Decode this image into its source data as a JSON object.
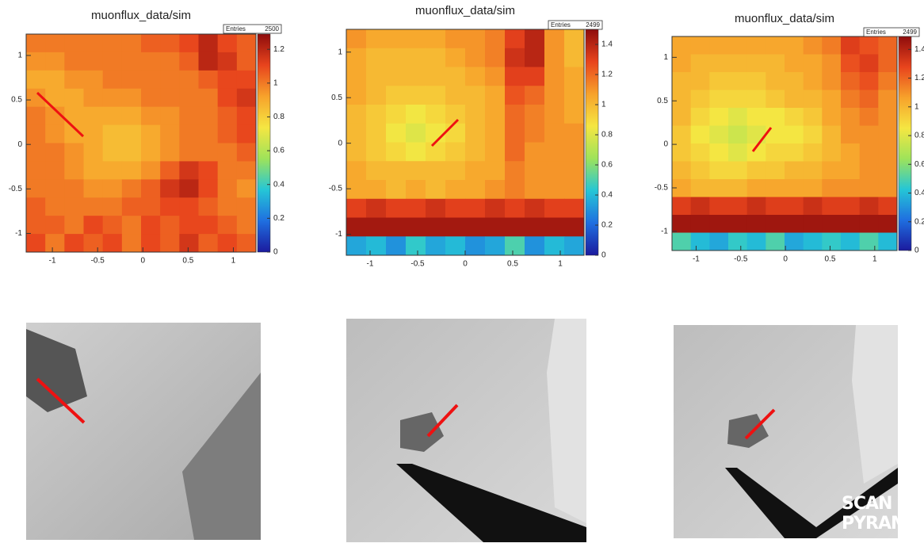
{
  "chart_data": [
    {
      "type": "heatmap",
      "title": "muonflux_data/sim",
      "stats_box": [
        {
          "name": "Entries",
          "value": 2500
        }
      ],
      "xlim": [
        -1.29,
        1.25
      ],
      "ylim": [
        -1.21,
        1.24
      ],
      "xticks": [
        -1,
        -0.5,
        0,
        0.5,
        1
      ],
      "yticks": [
        -1,
        -0.5,
        0,
        0.5,
        1
      ],
      "zlim": [
        0,
        1.29
      ],
      "zticks": [
        0,
        0.2,
        0.4,
        0.6,
        0.8,
        1,
        1.2
      ],
      "colormap": [
        "#1b1a9e",
        "#1f6fe0",
        "#25c6d6",
        "#9ee35a",
        "#f5e642",
        "#f7a22b",
        "#e8441d",
        "#8e0c0c"
      ],
      "values": [
        [
          1.0,
          1.0,
          1.0,
          1.0,
          1.0,
          1.0,
          1.05,
          1.05,
          1.1,
          1.2,
          1.1,
          1.05
        ],
        [
          0.95,
          0.95,
          1.0,
          1.0,
          1.0,
          1.0,
          1.0,
          1.0,
          1.05,
          1.2,
          1.15,
          1.05
        ],
        [
          0.9,
          0.9,
          0.95,
          0.95,
          1.0,
          1.0,
          1.0,
          1.0,
          1.0,
          1.05,
          1.1,
          1.1
        ],
        [
          0.95,
          0.9,
          0.9,
          0.95,
          0.95,
          0.95,
          1.0,
          1.0,
          1.0,
          1.0,
          1.1,
          1.15
        ],
        [
          1.0,
          0.95,
          0.9,
          0.9,
          0.9,
          0.9,
          0.95,
          0.95,
          1.0,
          1.0,
          1.05,
          1.1
        ],
        [
          1.0,
          0.95,
          0.9,
          0.9,
          0.85,
          0.85,
          0.9,
          0.95,
          1.0,
          1.0,
          1.05,
          1.1
        ],
        [
          1.0,
          1.0,
          0.95,
          0.9,
          0.85,
          0.85,
          0.9,
          0.95,
          1.0,
          1.0,
          1.0,
          1.05
        ],
        [
          1.0,
          1.0,
          0.95,
          0.9,
          0.9,
          0.9,
          0.95,
          1.05,
          1.15,
          1.1,
          1.0,
          1.0
        ],
        [
          1.0,
          1.0,
          1.0,
          0.95,
          0.95,
          1.0,
          1.05,
          1.15,
          1.2,
          1.1,
          1.0,
          0.95
        ],
        [
          1.05,
          1.0,
          1.0,
          1.0,
          1.0,
          1.05,
          1.05,
          1.1,
          1.1,
          1.05,
          1.0,
          1.0
        ],
        [
          1.05,
          1.05,
          1.0,
          1.1,
          1.05,
          1.0,
          1.1,
          1.05,
          1.1,
          1.1,
          1.05,
          1.0
        ],
        [
          1.1,
          1.0,
          1.1,
          1.05,
          1.1,
          1.0,
          1.1,
          1.05,
          1.15,
          1.05,
          1.1,
          1.05
        ]
      ]
    },
    {
      "type": "heatmap",
      "title": "muonflux_data/sim",
      "stats_box": [
        {
          "name": "Entries",
          "value": 2499
        }
      ],
      "xlim": [
        -1.25,
        1.25
      ],
      "ylim": [
        -1.23,
        1.25
      ],
      "xticks": [
        -1,
        -0.5,
        0,
        0.5,
        1
      ],
      "yticks": [
        -1,
        -0.5,
        0,
        0.5,
        1
      ],
      "zlim": [
        0,
        1.5
      ],
      "zticks": [
        0,
        0.2,
        0.4,
        0.6,
        0.8,
        1,
        1.2,
        1.4
      ],
      "colormap": [
        "#1b1a9e",
        "#1f6fe0",
        "#25c6d6",
        "#9ee35a",
        "#f5e642",
        "#f7a22b",
        "#e8441d",
        "#8e0c0c"
      ],
      "values": [
        [
          1.1,
          1.05,
          1.05,
          1.05,
          1.05,
          1.1,
          1.1,
          1.15,
          1.3,
          1.4,
          1.1,
          1.0
        ],
        [
          1.05,
          1.0,
          1.0,
          1.0,
          1.0,
          1.05,
          1.1,
          1.15,
          1.35,
          1.4,
          1.1,
          1.0
        ],
        [
          1.05,
          1.0,
          1.0,
          1.0,
          1.0,
          1.0,
          1.05,
          1.1,
          1.3,
          1.3,
          1.1,
          1.05
        ],
        [
          1.05,
          1.0,
          0.95,
          0.95,
          0.95,
          1.0,
          1.0,
          1.05,
          1.25,
          1.2,
          1.1,
          1.05
        ],
        [
          1.0,
          0.95,
          0.9,
          0.85,
          0.9,
          0.95,
          1.0,
          1.05,
          1.2,
          1.15,
          1.1,
          1.05
        ],
        [
          1.0,
          0.95,
          0.85,
          0.8,
          0.85,
          0.9,
          1.0,
          1.05,
          1.2,
          1.15,
          1.1,
          1.1
        ],
        [
          1.0,
          0.95,
          0.9,
          0.85,
          0.9,
          0.95,
          1.0,
          1.05,
          1.2,
          1.1,
          1.1,
          1.1
        ],
        [
          1.05,
          1.0,
          1.0,
          1.0,
          1.0,
          1.0,
          1.05,
          1.05,
          1.15,
          1.1,
          1.1,
          1.1
        ],
        [
          1.05,
          1.05,
          1.0,
          1.05,
          1.0,
          1.05,
          1.05,
          1.1,
          1.15,
          1.1,
          1.1,
          1.1
        ],
        [
          1.3,
          1.35,
          1.3,
          1.3,
          1.35,
          1.3,
          1.3,
          1.35,
          1.3,
          1.35,
          1.3,
          1.3
        ],
        [
          1.45,
          1.45,
          1.45,
          1.45,
          1.45,
          1.45,
          1.45,
          1.45,
          1.45,
          1.45,
          1.45,
          1.45
        ],
        [
          0.35,
          0.4,
          0.3,
          0.45,
          0.35,
          0.4,
          0.3,
          0.35,
          0.5,
          0.3,
          0.4,
          0.35
        ]
      ]
    },
    {
      "type": "heatmap",
      "title": "muonflux_data/sim",
      "stats_box": [
        {
          "name": "Entries",
          "value": 2499
        }
      ],
      "xlim": [
        -1.27,
        1.25
      ],
      "ylim": [
        -1.22,
        1.24
      ],
      "xticks": [
        -1,
        -0.5,
        0,
        0.5,
        1
      ],
      "yticks": [
        -1,
        -0.5,
        0,
        0.5,
        1
      ],
      "zlim": [
        0,
        1.49
      ],
      "zticks": [
        0,
        0.2,
        0.4,
        0.6,
        0.8,
        1,
        1.2,
        1.4
      ],
      "colormap": [
        "#1b1a9e",
        "#1f6fe0",
        "#25c6d6",
        "#9ee35a",
        "#f5e642",
        "#f7a22b",
        "#e8441d",
        "#8e0c0c"
      ],
      "values": [
        [
          1.05,
          1.05,
          1.05,
          1.05,
          1.05,
          1.05,
          1.05,
          1.1,
          1.15,
          1.3,
          1.25,
          1.2
        ],
        [
          1.05,
          1.0,
          1.0,
          1.0,
          1.0,
          1.0,
          1.05,
          1.05,
          1.1,
          1.25,
          1.3,
          1.2
        ],
        [
          1.0,
          1.0,
          0.95,
          0.95,
          0.95,
          1.0,
          1.0,
          1.05,
          1.1,
          1.2,
          1.25,
          1.15
        ],
        [
          1.0,
          0.95,
          0.9,
          0.9,
          0.9,
          0.95,
          1.0,
          1.0,
          1.05,
          1.15,
          1.2,
          1.1
        ],
        [
          1.0,
          0.9,
          0.85,
          0.8,
          0.85,
          0.85,
          0.9,
          0.95,
          1.05,
          1.1,
          1.15,
          1.1
        ],
        [
          0.95,
          0.85,
          0.8,
          0.75,
          0.8,
          0.85,
          0.85,
          0.9,
          1.0,
          1.1,
          1.1,
          1.1
        ],
        [
          0.95,
          0.9,
          0.85,
          0.8,
          0.85,
          0.9,
          0.9,
          0.95,
          1.0,
          1.05,
          1.1,
          1.1
        ],
        [
          1.0,
          0.95,
          0.9,
          0.9,
          0.95,
          0.95,
          1.0,
          1.0,
          1.05,
          1.05,
          1.1,
          1.1
        ],
        [
          1.05,
          1.0,
          1.0,
          1.0,
          1.05,
          1.05,
          1.05,
          1.05,
          1.1,
          1.1,
          1.1,
          1.1
        ],
        [
          1.3,
          1.35,
          1.3,
          1.3,
          1.35,
          1.3,
          1.3,
          1.35,
          1.3,
          1.3,
          1.35,
          1.3
        ],
        [
          1.45,
          1.45,
          1.45,
          1.45,
          1.45,
          1.45,
          1.45,
          1.45,
          1.45,
          1.45,
          1.45,
          1.45
        ],
        [
          0.5,
          0.4,
          0.35,
          0.45,
          0.4,
          0.5,
          0.35,
          0.4,
          0.45,
          0.4,
          0.5,
          0.4
        ]
      ]
    }
  ],
  "logo": [
    "SCAN",
    "PYRAMIDS"
  ]
}
